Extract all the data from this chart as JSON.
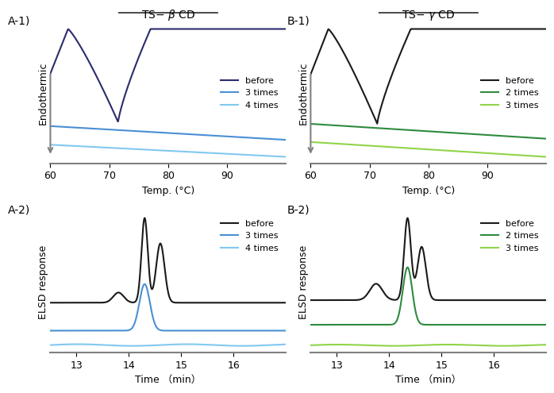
{
  "A1_label": "A-1)",
  "B1_label": "B-1)",
  "A2_label": "A-2)",
  "B2_label": "B-2)",
  "temp_xlabel": "Temp. (°C)",
  "time_xlabel": "Time （min）",
  "endothermic_ylabel": "Endothermic",
  "elsd_ylabel": "ELSD response",
  "temp_xlim": [
    60,
    100
  ],
  "temp_xticks": [
    60,
    70,
    80,
    90
  ],
  "time_xlim": [
    12.5,
    17.0
  ],
  "time_xticks": [
    13.0,
    14.0,
    15.0,
    16.0
  ],
  "A1_before_color": "#2b2b6e",
  "A1_3times_color": "#4a8fd4",
  "A1_4times_color": "#82c8f0",
  "B1_before_color": "#1a1a1a",
  "B1_2times_color": "#2e8b3e",
  "B1_3times_color": "#90d44a",
  "A2_before_color": "#1a1a1a",
  "A2_3times_color": "#4a8fd4",
  "A2_4times_color": "#82c8f0",
  "B2_before_color": "#1a1a1a",
  "B2_2times_color": "#2e8b3e",
  "B2_3times_color": "#90d44a",
  "legend_before": "before",
  "A1_legend2": "3 times",
  "A1_legend3": "4 times",
  "B1_legend2": "2 times",
  "B1_legend3": "3 times",
  "A2_legend2": "3 times",
  "A2_legend3": "4 times",
  "B2_legend2": "2 times",
  "B2_legend3": "3 times"
}
